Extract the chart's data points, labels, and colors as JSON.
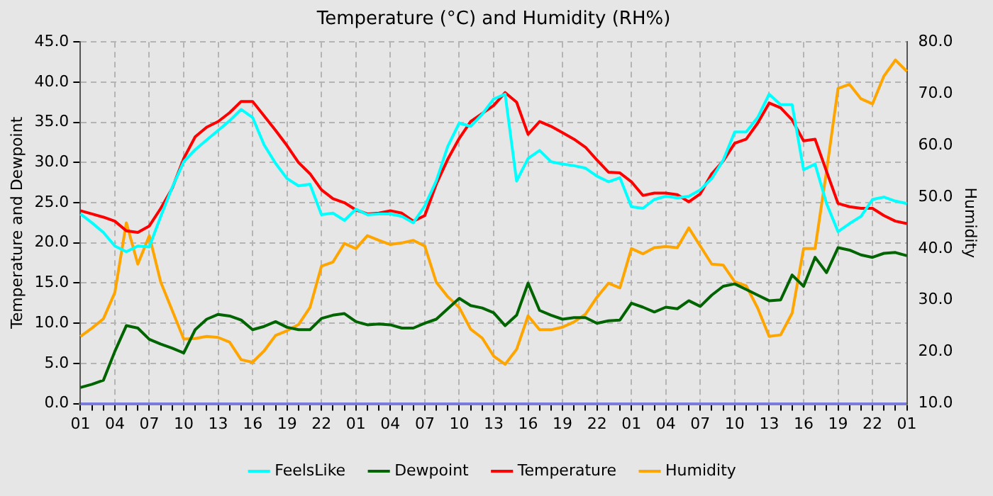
{
  "chart_data": {
    "type": "line",
    "title": "Temperature (°C) and Humidity (RH%)",
    "ylabel": "Temperature and Dewpoint",
    "y2label": "Humidity",
    "categories": [
      "01",
      null,
      null,
      "04",
      null,
      null,
      "07",
      null,
      null,
      "10",
      null,
      null,
      "13",
      null,
      null,
      "16",
      null,
      null,
      "19",
      null,
      null,
      "22",
      null,
      null,
      "01",
      null,
      null,
      "04",
      null,
      null,
      "07",
      null,
      null,
      "10",
      null,
      null,
      "13",
      null,
      null,
      "16",
      null,
      null,
      "19",
      null,
      null,
      "22",
      null,
      null,
      "01",
      null,
      null,
      "04",
      null,
      null,
      "07",
      null,
      null,
      "10",
      null,
      null,
      "13",
      null,
      null,
      "16",
      null,
      null,
      "19",
      null,
      null,
      "22",
      null,
      null,
      "01"
    ],
    "ylim": [
      0,
      45
    ],
    "yticks": [
      {
        "value": 0,
        "label": "0.0"
      },
      {
        "value": 5,
        "label": "5.0"
      },
      {
        "value": 10,
        "label": "10.0"
      },
      {
        "value": 15,
        "label": "15.0"
      },
      {
        "value": 20,
        "label": "20.0"
      },
      {
        "value": 25,
        "label": "25.0"
      },
      {
        "value": 30,
        "label": "30.0"
      },
      {
        "value": 35,
        "label": "35.0"
      },
      {
        "value": 40,
        "label": "40.0"
      },
      {
        "value": 45,
        "label": "45.0"
      }
    ],
    "y2lim": [
      10,
      80
    ],
    "y2ticks": [
      {
        "value": 10,
        "label": "10.0"
      },
      {
        "value": 20,
        "label": "20.0"
      },
      {
        "value": 30,
        "label": "30.0"
      },
      {
        "value": 40,
        "label": "40.0"
      },
      {
        "value": 50,
        "label": "50.0"
      },
      {
        "value": 60,
        "label": "60.0"
      },
      {
        "value": 70,
        "label": "70.0"
      },
      {
        "value": 80,
        "label": "80.0"
      }
    ],
    "grid": true,
    "legend": "bottom",
    "marker": "none",
    "line_style": "solid",
    "series": [
      {
        "name": "FeelsLike",
        "color": "#00ffff",
        "values": [
          23.6,
          22.5,
          21.3,
          19.6,
          18.9,
          19.6,
          19.5,
          23.3,
          26.9,
          30.1,
          31.6,
          32.8,
          34.0,
          35.2,
          36.6,
          35.6,
          32.2,
          29.9,
          28.0,
          27.1,
          27.3,
          23.5,
          23.7,
          22.8,
          24.2,
          23.5,
          23.6,
          23.6,
          23.3,
          22.5,
          24.6,
          27.7,
          32.0,
          34.9,
          34.5,
          36.0,
          37.9,
          38.5,
          27.7,
          30.5,
          31.5,
          30.1,
          29.8,
          29.6,
          29.3,
          28.3,
          27.6,
          28.1,
          24.5,
          24.3,
          25.4,
          25.8,
          25.6,
          25.8,
          26.6,
          28.0,
          30.3,
          33.8,
          33.8,
          35.6,
          38.5,
          37.2,
          37.2,
          29.1,
          29.8,
          24.9,
          21.4,
          22.4,
          23.3,
          25.4,
          25.7,
          25.2,
          24.9
        ]
      },
      {
        "name": "Dewpoint",
        "color": "#006400",
        "values": [
          2.0,
          2.4,
          2.9,
          6.5,
          9.7,
          9.4,
          8.0,
          7.4,
          6.9,
          6.3,
          9.2,
          10.5,
          11.1,
          10.9,
          10.4,
          9.2,
          9.6,
          10.2,
          9.5,
          9.2,
          9.2,
          10.6,
          11.0,
          11.2,
          10.2,
          9.8,
          9.9,
          9.8,
          9.4,
          9.4,
          10.0,
          10.5,
          11.8,
          13.1,
          12.2,
          11.9,
          11.3,
          9.7,
          11.0,
          15.0,
          11.6,
          11.0,
          10.5,
          10.7,
          10.7,
          10.0,
          10.3,
          10.4,
          12.5,
          12.0,
          11.4,
          12.0,
          11.8,
          12.8,
          12.1,
          13.5,
          14.6,
          14.9,
          14.2,
          13.5,
          12.8,
          12.9,
          16.0,
          14.6,
          18.2,
          16.3,
          19.4,
          19.1,
          18.5,
          18.2,
          18.7,
          18.8,
          18.4
        ]
      },
      {
        "name": "Temperature",
        "color": "#ff0000",
        "values": [
          24.0,
          23.6,
          23.2,
          22.7,
          21.5,
          21.3,
          22.1,
          24.3,
          26.8,
          30.5,
          33.2,
          34.4,
          35.1,
          36.2,
          37.6,
          37.6,
          35.8,
          34.0,
          32.1,
          30.0,
          28.6,
          26.6,
          25.5,
          25.0,
          24.1,
          23.6,
          23.7,
          24.0,
          23.7,
          22.7,
          23.4,
          27.3,
          30.4,
          33.0,
          35.1,
          36.1,
          37.1,
          38.7,
          37.5,
          33.5,
          35.1,
          34.5,
          33.7,
          32.9,
          31.9,
          30.3,
          28.8,
          28.7,
          27.6,
          25.9,
          26.2,
          26.2,
          26.0,
          25.1,
          26.1,
          28.6,
          30.2,
          32.4,
          32.9,
          34.9,
          37.4,
          36.8,
          35.3,
          32.7,
          32.9,
          28.9,
          24.9,
          24.5,
          24.3,
          24.3,
          23.4,
          22.7,
          22.4
        ]
      },
      {
        "name": "Humidity",
        "color": "#ffa500",
        "axis": "y2",
        "values": [
          23.0,
          24.6,
          26.4,
          31.5,
          45.0,
          37.0,
          42.5,
          33.5,
          28.0,
          22.5,
          22.6,
          23.0,
          22.8,
          21.9,
          18.5,
          18.0,
          20.2,
          23.2,
          24.1,
          25.3,
          28.6,
          36.6,
          37.4,
          41.0,
          40.0,
          42.5,
          41.6,
          40.8,
          41.1,
          41.6,
          40.5,
          33.5,
          30.7,
          28.6,
          24.4,
          22.7,
          19.2,
          17.6,
          20.5,
          27.0,
          24.3,
          24.3,
          24.8,
          25.8,
          27.3,
          30.6,
          33.3,
          32.4,
          40.0,
          39.0,
          40.2,
          40.4,
          40.2,
          44.0,
          40.5,
          37.0,
          36.8,
          33.6,
          32.8,
          28.5,
          23.0,
          23.3,
          27.5,
          40.0,
          40.0,
          55.0,
          71.0,
          71.8,
          69.0,
          68.0,
          73.4,
          76.5,
          74.3
        ]
      }
    ]
  }
}
